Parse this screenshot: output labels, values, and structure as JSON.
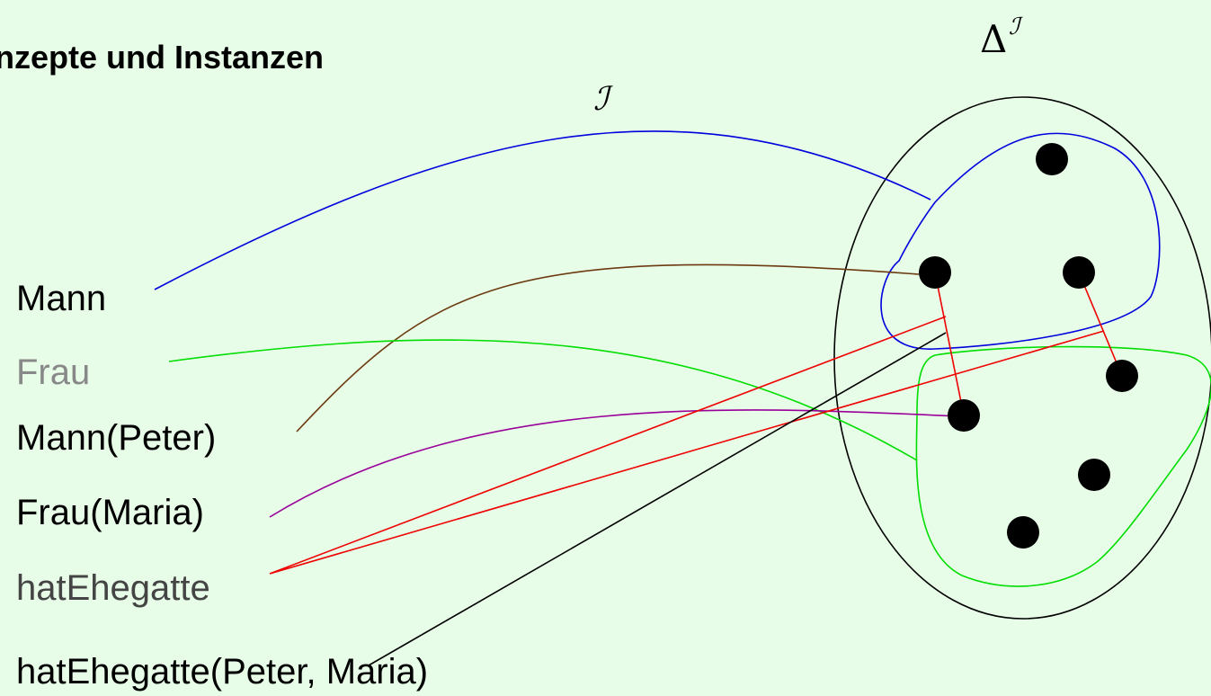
{
  "title": "nzepte und Instanzen",
  "interpretation_symbol": "ℐ",
  "domain_symbol": {
    "base": "Δ",
    "superscript": "ℐ"
  },
  "labels": [
    "Mann",
    "Frau",
    "Mann(Peter)",
    "Frau(Maria)",
    "hatEhegatte",
    "hatEhegatte(Peter, Maria)"
  ]
}
